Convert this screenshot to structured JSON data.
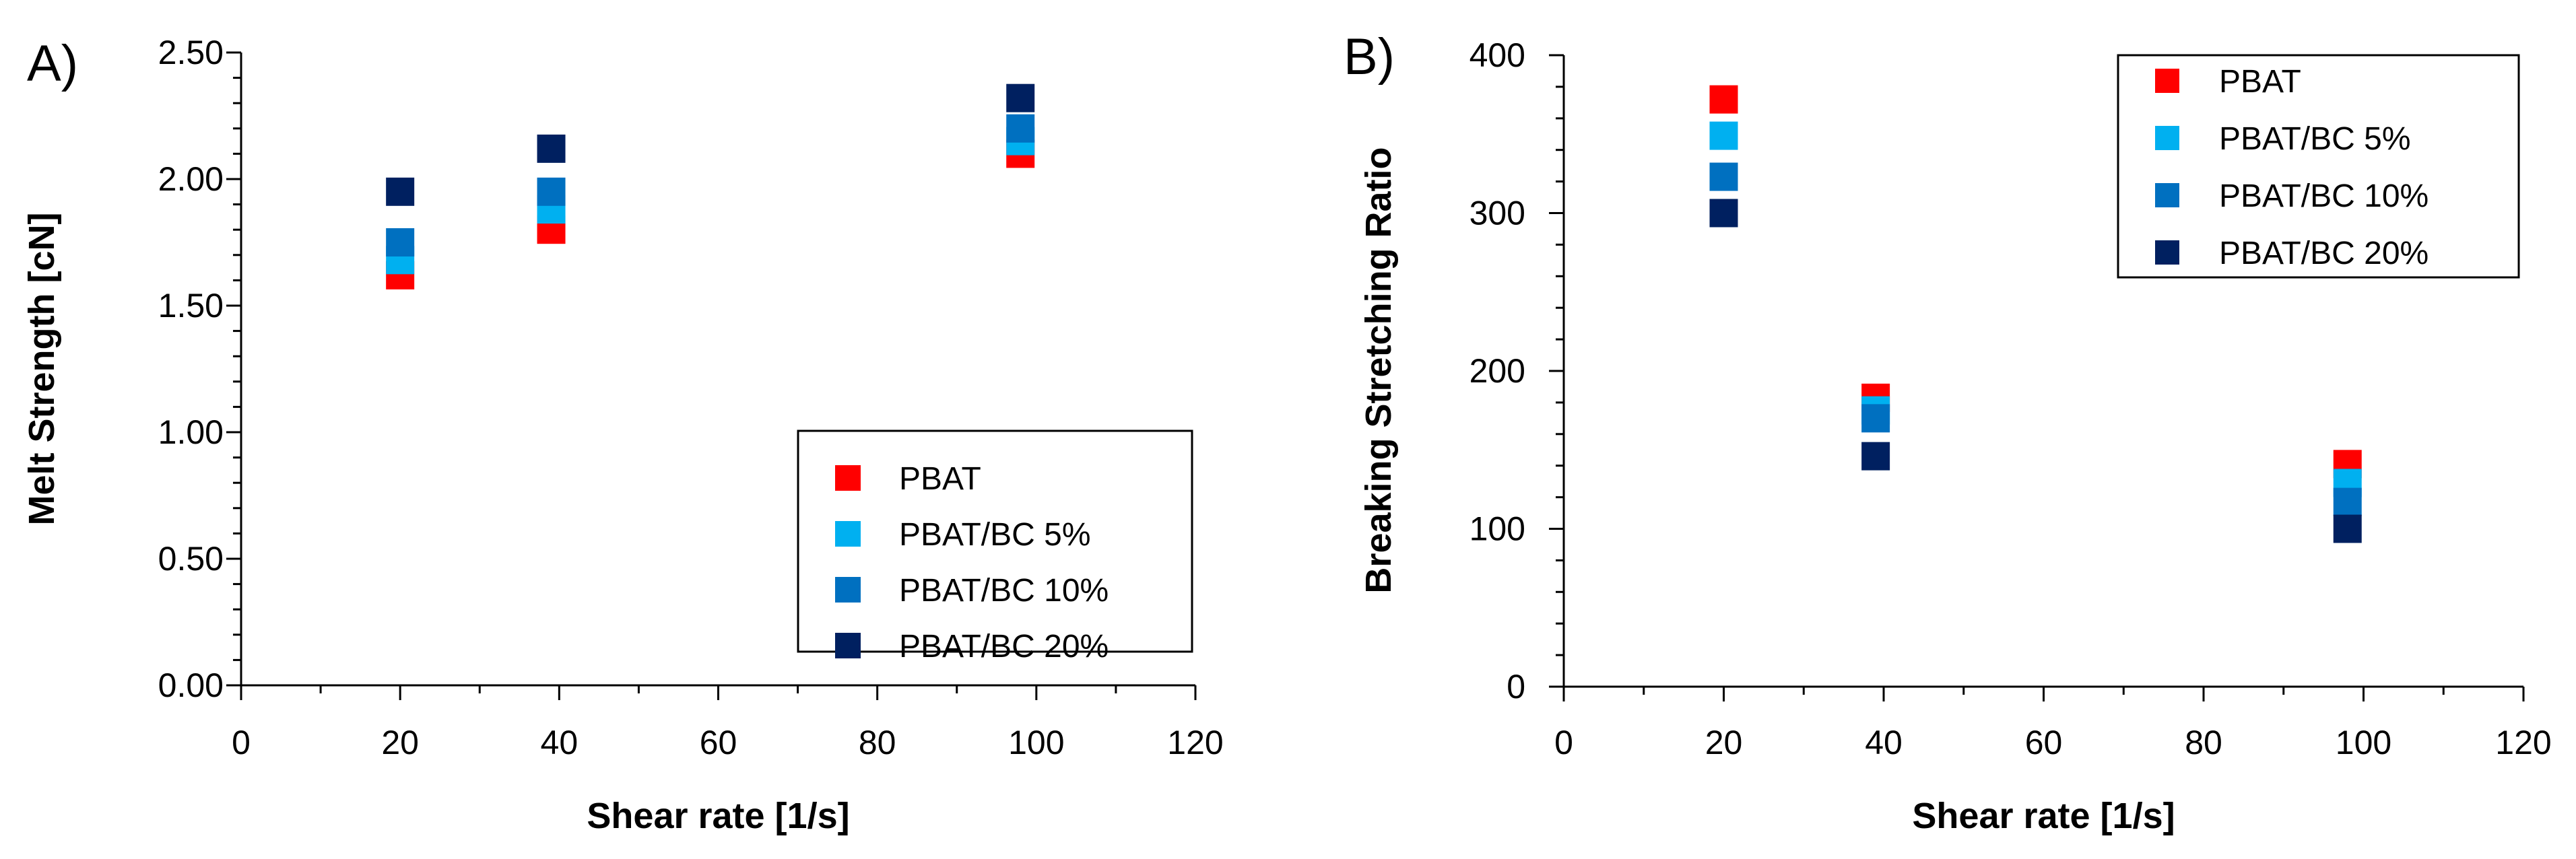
{
  "chart_data": [
    {
      "type": "scatter",
      "panel_label": "A)",
      "xlabel": "Shear rate [1/s]",
      "ylabel": "Melt Strength [cN]",
      "xlim": [
        0,
        120
      ],
      "ylim": [
        0,
        2.5
      ],
      "xticks": [
        "0",
        "20",
        "40",
        "60",
        "80",
        "100",
        "120"
      ],
      "yticks": [
        "0.00",
        "0.50",
        "1.00",
        "1.50",
        "2.00",
        "2.50"
      ],
      "legend_position": "bottom-right",
      "series": [
        {
          "name": "PBAT",
          "color": "#ff0000",
          "x": [
            20,
            39,
            98
          ],
          "y": [
            1.62,
            1.8,
            2.1
          ]
        },
        {
          "name": "PBAT/BC 5%",
          "color": "#00b0f0",
          "x": [
            20,
            39,
            98
          ],
          "y": [
            1.68,
            1.88,
            2.15
          ]
        },
        {
          "name": "PBAT/BC 10%",
          "color": "#0070c0",
          "x": [
            20,
            39,
            98
          ],
          "y": [
            1.75,
            1.95,
            2.2
          ]
        },
        {
          "name": "PBAT/BC 20%",
          "color": "#002060",
          "x": [
            20,
            39,
            98
          ],
          "y": [
            1.95,
            2.12,
            2.32
          ]
        }
      ]
    },
    {
      "type": "scatter",
      "panel_label": "B)",
      "xlabel": "Shear rate [1/s]",
      "ylabel": "Breaking Stretching Ratio",
      "xlim": [
        0,
        120
      ],
      "ylim": [
        0,
        400
      ],
      "xticks": [
        "0",
        "20",
        "40",
        "60",
        "80",
        "100",
        "120"
      ],
      "yticks": [
        "0",
        "100",
        "200",
        "300",
        "400"
      ],
      "legend_position": "top-right",
      "series": [
        {
          "name": "PBAT",
          "color": "#ff0000",
          "x": [
            20,
            39,
            98
          ],
          "y": [
            372,
            183,
            141
          ]
        },
        {
          "name": "PBAT/BC 5%",
          "color": "#00b0f0",
          "x": [
            20,
            39,
            98
          ],
          "y": [
            349,
            175,
            129
          ]
        },
        {
          "name": "PBAT/BC 10%",
          "color": "#0070c0",
          "x": [
            20,
            39,
            98
          ],
          "y": [
            323,
            170,
            117
          ]
        },
        {
          "name": "PBAT/BC 20%",
          "color": "#002060",
          "x": [
            20,
            39,
            98
          ],
          "y": [
            300,
            146,
            100
          ]
        }
      ]
    }
  ]
}
